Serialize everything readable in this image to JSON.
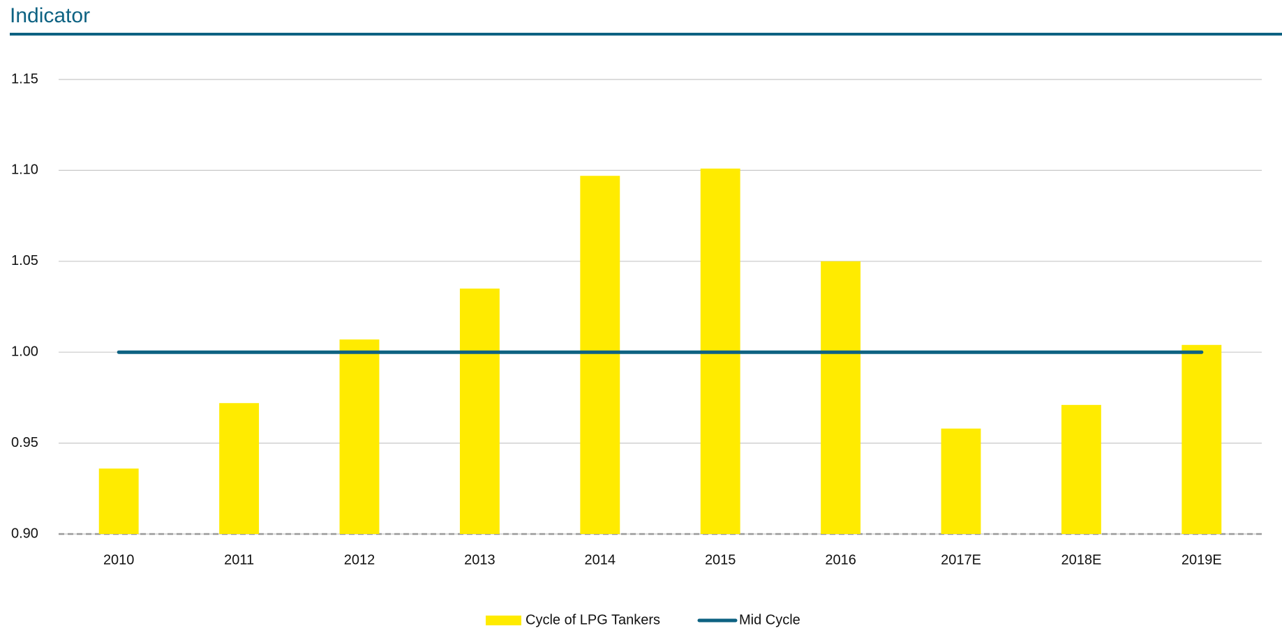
{
  "chart_data": {
    "type": "bar",
    "title": "Indicator",
    "categories": [
      "2010",
      "2011",
      "2012",
      "2013",
      "2014",
      "2015",
      "2016",
      "2017E",
      "2018E",
      "2019E"
    ],
    "series": [
      {
        "name": "Cycle of LPG Tankers",
        "type": "bar",
        "color": "#ffeb00",
        "values": [
          0.936,
          0.972,
          1.007,
          1.035,
          1.097,
          1.101,
          1.05,
          0.958,
          0.971,
          1.004
        ]
      },
      {
        "name": "Mid Cycle",
        "type": "line",
        "color": "#0d6282",
        "values": [
          1,
          1,
          1,
          1,
          1,
          1,
          1,
          1,
          1,
          1
        ]
      }
    ],
    "ylim": [
      0.9,
      1.15
    ],
    "yticks": [
      {
        "value": 0.9,
        "label": "0.90"
      },
      0.95,
      {
        "value": 1,
        "label": "1.00"
      },
      1.05,
      {
        "value": 1.1,
        "label": "1.10"
      },
      1.15
    ],
    "grid": true,
    "legend": "bottom"
  }
}
